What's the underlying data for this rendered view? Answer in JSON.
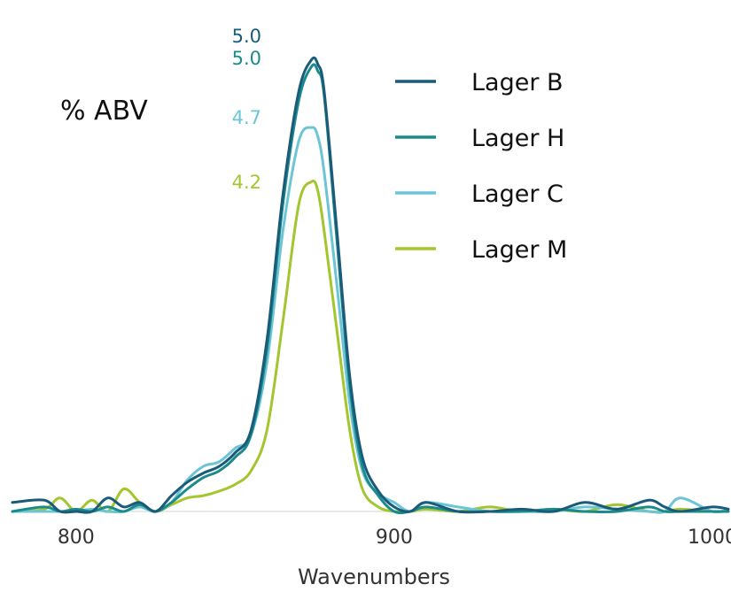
{
  "chart_data": {
    "type": "line",
    "title": "% ABV",
    "xlabel": "Wavenumbers",
    "ylabel": "",
    "xlim": [
      780,
      1005
    ],
    "ylim": [
      0,
      1.05
    ],
    "xticks": [
      800,
      900,
      1000
    ],
    "grid": false,
    "legend_position": "top-right",
    "peak_labels": [
      "5.0",
      "5.0",
      "4.7",
      "4.2"
    ],
    "series": [
      {
        "name": "Lager B",
        "color": "#1b5b7a",
        "peak_label": "5.0",
        "x": [
          780,
          790,
          795,
          800,
          805,
          810,
          815,
          820,
          825,
          830,
          835,
          840,
          845,
          850,
          855,
          860,
          865,
          870,
          874,
          876,
          878,
          882,
          886,
          890,
          895,
          900,
          905,
          910,
          920,
          930,
          940,
          950,
          960,
          970,
          980,
          985,
          990,
          1000,
          1005
        ],
        "y": [
          0.02,
          0.025,
          0.0,
          0.0,
          0.0,
          0.03,
          0.01,
          0.02,
          0.0,
          0.035,
          0.065,
          0.085,
          0.1,
          0.13,
          0.18,
          0.38,
          0.7,
          0.93,
          1.0,
          0.99,
          0.93,
          0.62,
          0.3,
          0.12,
          0.045,
          0.01,
          0.0,
          0.02,
          0.0,
          0.0,
          0.005,
          0.0,
          0.02,
          0.005,
          0.025,
          0.01,
          0.0,
          0.01,
          0.005
        ]
      },
      {
        "name": "Lager H",
        "color": "#1a8a8c",
        "peak_label": "5.0",
        "x": [
          780,
          790,
          795,
          800,
          805,
          810,
          815,
          820,
          825,
          830,
          835,
          840,
          845,
          850,
          855,
          860,
          865,
          870,
          874,
          876,
          878,
          882,
          886,
          890,
          895,
          900,
          905,
          910,
          920,
          930,
          940,
          950,
          960,
          970,
          980,
          985,
          990,
          1000,
          1005
        ],
        "y": [
          0.0,
          0.01,
          0.0,
          0.005,
          0.0,
          0.01,
          0.0,
          0.015,
          0.0,
          0.02,
          0.05,
          0.075,
          0.09,
          0.12,
          0.17,
          0.36,
          0.68,
          0.91,
          0.985,
          0.975,
          0.92,
          0.6,
          0.28,
          0.1,
          0.035,
          0.0,
          0.0,
          0.01,
          0.0,
          0.0,
          0.0,
          0.005,
          0.0,
          0.0,
          0.01,
          0.0,
          0.0,
          0.0,
          0.0
        ]
      },
      {
        "name": "Lager C",
        "color": "#6cc5d6",
        "peak_label": "4.7",
        "x": [
          780,
          790,
          795,
          800,
          805,
          810,
          815,
          820,
          825,
          830,
          835,
          840,
          845,
          850,
          855,
          860,
          865,
          870,
          874,
          876,
          878,
          882,
          886,
          890,
          895,
          900,
          905,
          910,
          920,
          930,
          940,
          950,
          960,
          970,
          980,
          985,
          990,
          1000,
          1005
        ],
        "y": [
          0.0,
          0.0,
          0.0,
          0.0,
          0.005,
          0.0,
          0.0,
          0.01,
          0.0,
          0.02,
          0.07,
          0.1,
          0.11,
          0.14,
          0.17,
          0.33,
          0.62,
          0.82,
          0.85,
          0.83,
          0.75,
          0.5,
          0.24,
          0.09,
          0.04,
          0.02,
          0.0,
          0.02,
          0.01,
          0.0,
          0.0,
          0.0,
          0.01,
          0.005,
          0.0,
          0.0,
          0.03,
          0.0,
          0.005
        ]
      },
      {
        "name": "Lager M",
        "color": "#a3c52e",
        "peak_label": "4.2",
        "x": [
          780,
          790,
          795,
          800,
          805,
          810,
          815,
          820,
          825,
          830,
          835,
          840,
          845,
          850,
          855,
          860,
          865,
          870,
          874,
          876,
          878,
          882,
          886,
          890,
          895,
          900,
          905,
          910,
          920,
          930,
          940,
          950,
          960,
          970,
          980,
          985,
          990,
          1000,
          1005
        ],
        "y": [
          0.0,
          0.005,
          0.03,
          0.0,
          0.025,
          0.0,
          0.05,
          0.02,
          0.0,
          0.015,
          0.03,
          0.035,
          0.045,
          0.06,
          0.09,
          0.18,
          0.42,
          0.68,
          0.73,
          0.71,
          0.62,
          0.4,
          0.18,
          0.05,
          0.01,
          0.0,
          0.0,
          0.005,
          0.0,
          0.01,
          0.0,
          0.005,
          0.0,
          0.015,
          0.0,
          0.0,
          0.005,
          0.0,
          0.0
        ]
      }
    ]
  }
}
